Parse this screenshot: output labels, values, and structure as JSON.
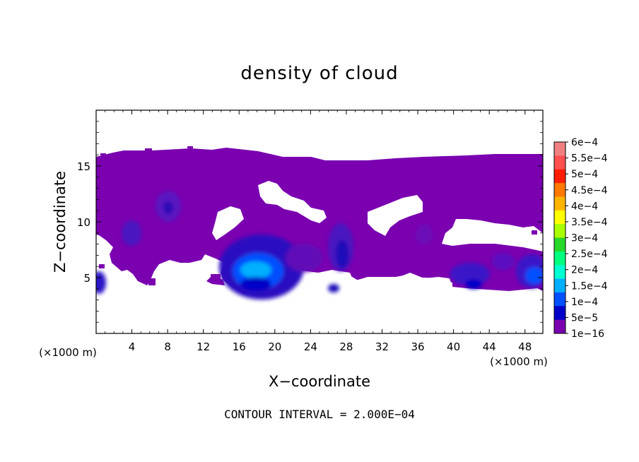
{
  "chart_data": {
    "type": "heatmap",
    "title": "density of cloud",
    "xlabel": "X−coordinate",
    "ylabel": "Z−coordinate",
    "x_unit": "(×1000 m)",
    "y_unit": "(×1000 m)",
    "xlim": [
      0,
      50
    ],
    "ylim": [
      0,
      20
    ],
    "x_ticks": [
      4,
      8,
      12,
      16,
      20,
      24,
      28,
      32,
      36,
      40,
      44,
      48
    ],
    "y_ticks": [
      5,
      10,
      15
    ],
    "footer": "CONTOUR INTERVAL = 2.000E−04",
    "colorbar": {
      "labels": [
        "6e−4",
        "5.5e−4",
        "5e−4",
        "4.5e−4",
        "4e−4",
        "3.5e−4",
        "3e−4",
        "2.5e−4",
        "2e−4",
        "1.5e−4",
        "1e−4",
        "5e−5",
        "1e−16"
      ],
      "colors": [
        "#f08080",
        "#ff5050",
        "#ff1e00",
        "#ff7800",
        "#ffb400",
        "#ffff00",
        "#a8ff00",
        "#28d828",
        "#00ff7f",
        "#00ffd0",
        "#00b0ff",
        "#0050ff",
        "#0000c8",
        "#7a00b0"
      ]
    },
    "regions": [
      {
        "name": "main cloud layer",
        "x_range": [
          0,
          50
        ],
        "z_range": [
          4,
          16
        ],
        "level": "1e−16"
      },
      {
        "name": "cell near x=18",
        "x_center": 18.5,
        "z_center": 5.5,
        "peak_level": "1.5e−4"
      },
      {
        "name": "cell near x=49",
        "x_center": 49,
        "z_center": 4.8,
        "peak_level": "1e−4"
      },
      {
        "name": "cell near x=42",
        "x_center": 42,
        "z_center": 5,
        "peak_level": "5e−5"
      },
      {
        "name": "cell near x=27.5",
        "x_center": 27.5,
        "z_center": 7.5,
        "peak_level": "5e−5"
      },
      {
        "name": "cell near x=8",
        "x_center": 8,
        "z_center": 11.5,
        "peak_level": "5e−5"
      },
      {
        "name": "cell near x=4",
        "x_center": 4,
        "z_center": 9.5,
        "peak_level": "5e−5"
      }
    ]
  }
}
